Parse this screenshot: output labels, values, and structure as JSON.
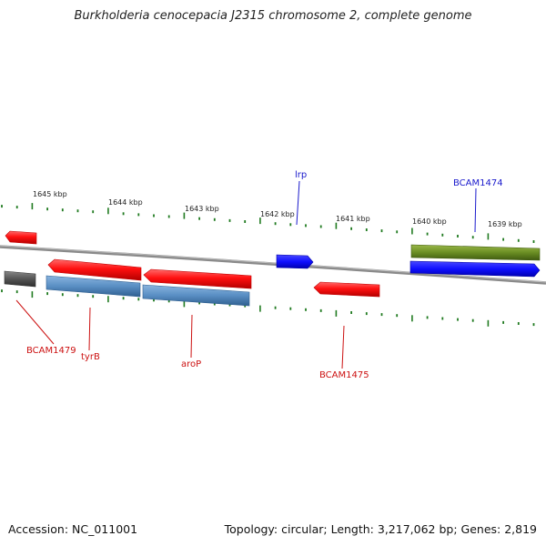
{
  "title": "Burkholderia cenocepacia J2315 chromosome 2, complete genome",
  "footer": {
    "accession": "Accession: NC_011001",
    "summary": "Topology: circular; Length: 3,217,062 bp; Genes: 2,819"
  },
  "scale_labels": [
    "1645 kbp",
    "1644 kbp",
    "1643 kbp",
    "1642 kbp",
    "1641 kbp",
    "1640 kbp",
    "1639 kbp"
  ],
  "feature_labels": [
    {
      "text": "lrp",
      "color": "#1a1acc"
    },
    {
      "text": "BCAM1474",
      "color": "#1a1acc"
    },
    {
      "text": "BCAM1479",
      "color": "#cc1111"
    },
    {
      "text": "tyrB",
      "color": "#cc1111"
    },
    {
      "text": "aroP",
      "color": "#cc1111"
    },
    {
      "text": "BCAM1475",
      "color": "#cc1111"
    }
  ],
  "colors": {
    "backbone": "#888888",
    "tick": "#1f7a1f",
    "red_feature": "#ff1a1a",
    "blue_feature": "#1a1aff",
    "steel_feature": "#5a8fc4",
    "olive_feature": "#6b8e23",
    "grey_feature": "#555555"
  }
}
